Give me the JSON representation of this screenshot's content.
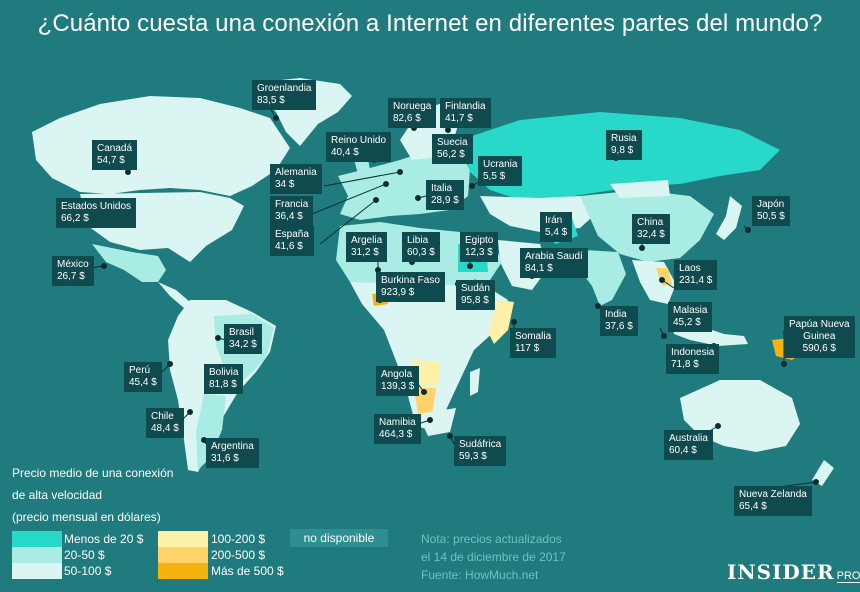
{
  "title": "¿Cuánto cuesta una conexión a Internet en diferentes partes del mundo?",
  "colors": {
    "background": "#1f7b7e",
    "label_bg": "#0f4a4e",
    "lt20": "#28d8c8",
    "b20_50": "#a9ece3",
    "b50_100": "#daf5f2",
    "b100_200": "#fdf1a8",
    "b200_500": "#fdd36a",
    "gt500": "#f6b20e",
    "no_data": "#2d8f91"
  },
  "countries": [
    {
      "name": "Groenlandia",
      "value": "83,5 $"
    },
    {
      "name": "Noruega",
      "value": "82,6 $"
    },
    {
      "name": "Finlandia",
      "value": "41,7 $"
    },
    {
      "name": "Canadá",
      "value": "54,7 $"
    },
    {
      "name": "Reino Unido",
      "value": "40,4 $"
    },
    {
      "name": "Suecia",
      "value": "56,2 $"
    },
    {
      "name": "Rusia",
      "value": "9,8 $"
    },
    {
      "name": "Ucrania",
      "value": "5,5 $"
    },
    {
      "name": "Alemania",
      "value": "34 $"
    },
    {
      "name": "Francia",
      "value": "36,4 $"
    },
    {
      "name": "Italia",
      "value": "28,9 $"
    },
    {
      "name": "Estados Unidos",
      "value": "66,2 $"
    },
    {
      "name": "España",
      "value": "41,6 $"
    },
    {
      "name": "Irán",
      "value": "5,4 $"
    },
    {
      "name": "China",
      "value": "32,4 $"
    },
    {
      "name": "Japón",
      "value": "50,5 $"
    },
    {
      "name": "Argelia",
      "value": "31,2 $"
    },
    {
      "name": "Libia",
      "value": "60,3 $"
    },
    {
      "name": "Egipto",
      "value": "12,3 $"
    },
    {
      "name": "Arabia Saudí",
      "value": "84,1 $"
    },
    {
      "name": "México",
      "value": "26,7 $"
    },
    {
      "name": "Burkina Faso",
      "value": "923,9 $"
    },
    {
      "name": "Laos",
      "value": "231,4 $"
    },
    {
      "name": "Sudán",
      "value": "95,8 $"
    },
    {
      "name": "India",
      "value": "37,6 $"
    },
    {
      "name": "Malasia",
      "value": "45,2 $"
    },
    {
      "name": "Brasil",
      "value": "34,2 $"
    },
    {
      "name": "Somalia",
      "value": "117 $"
    },
    {
      "name": "Papúa Nueva Guinea",
      "name_lines": [
        "Papúa Nueva",
        "Guinea"
      ],
      "value": "590,6 $"
    },
    {
      "name": "Indonesia",
      "value": "71,8 $"
    },
    {
      "name": "Perú",
      "value": "45,4 $"
    },
    {
      "name": "Bolivia",
      "value": "81,8 $"
    },
    {
      "name": "Angola",
      "value": "139,3 $"
    },
    {
      "name": "Chile",
      "value": "48,4 $"
    },
    {
      "name": "Namibia",
      "value": "464,3 $"
    },
    {
      "name": "Argentina",
      "value": "31,6 $"
    },
    {
      "name": "Sudáfrica",
      "value": "59,3 $"
    },
    {
      "name": "Australia",
      "value": "60,4 $"
    },
    {
      "name": "Nueva Zelanda",
      "value": "65,4 $"
    }
  ],
  "legend": {
    "title_lines": [
      "Precio medio de una conexión",
      "de alta velocidad",
      "(precio mensual en dólares)"
    ],
    "items": [
      {
        "label": "Menos de 20 $",
        "color": "#28d8c8"
      },
      {
        "label": "20-50 $",
        "color": "#a9ece3"
      },
      {
        "label": "50-100 $",
        "color": "#daf5f2"
      },
      {
        "label": "100-200 $",
        "color": "#fdf1a8"
      },
      {
        "label": "200-500 $",
        "color": "#fdd36a"
      },
      {
        "label": "Más de 500 $",
        "color": "#f6b20e"
      }
    ],
    "no_data": "no disponible"
  },
  "note_lines": [
    "Nota: precios actualizados",
    "el 14 de diciembre de 2017",
    "Fuente: HowMuch.net"
  ],
  "brand": {
    "name": "INSIDER",
    "suffix": "PRO"
  }
}
